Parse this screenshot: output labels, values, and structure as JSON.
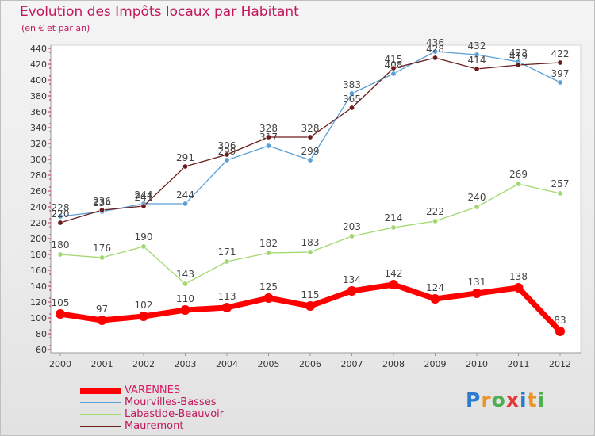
{
  "title": "Evolution des Impôts locaux par Habitant",
  "subtitle": "(en € et par an)",
  "logo_text": "Proxiti",
  "colors": {
    "title": "#c2185b",
    "VARENNES": "#ff0000",
    "Mourvilles-Basses": "#5a9fd6",
    "Labastide-Beauvoir": "#a2d86e",
    "Mauremont": "#6b1d1d",
    "axis": "#c0264f"
  },
  "chart_data": {
    "type": "line",
    "title": "Evolution des Impôts locaux par Habitant",
    "subtitle": "(en € et par an)",
    "x": [
      "2000",
      "2001",
      "2002",
      "2003",
      "2004",
      "2005",
      "2006",
      "2007",
      "2008",
      "2009",
      "2010",
      "2011",
      "2012"
    ],
    "ylim": [
      60,
      440
    ],
    "yticks": [
      60,
      80,
      100,
      120,
      140,
      160,
      180,
      200,
      220,
      240,
      260,
      280,
      300,
      320,
      340,
      360,
      380,
      400,
      420,
      440
    ],
    "grid": false,
    "legend_position": "bottom-left",
    "series": [
      {
        "name": "VARENNES",
        "values": [
          105,
          97,
          102,
          110,
          113,
          125,
          115,
          134,
          142,
          124,
          131,
          138,
          83
        ]
      },
      {
        "name": "Mourvilles-Basses",
        "values": [
          228,
          234,
          244,
          244,
          299,
          317,
          299,
          383,
          408,
          436,
          432,
          423,
          397
        ]
      },
      {
        "name": "Labastide-Beauvoir",
        "values": [
          180,
          176,
          190,
          143,
          171,
          182,
          183,
          203,
          214,
          222,
          240,
          269,
          257
        ]
      },
      {
        "name": "Mauremont",
        "values": [
          220,
          236,
          241,
          291,
          306,
          328,
          328,
          365,
          415,
          428,
          414,
          419,
          422
        ]
      }
    ]
  }
}
